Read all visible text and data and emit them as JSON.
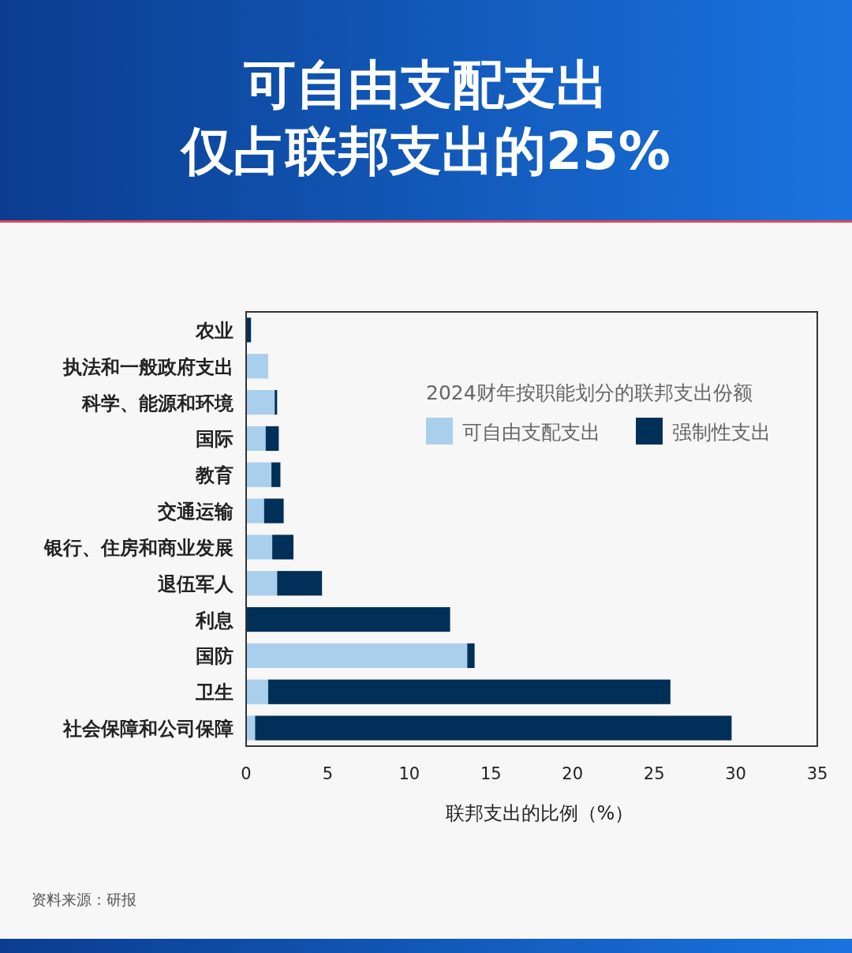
{
  "chart_data": {
    "type": "bar",
    "orientation": "horizontal",
    "stacked": true,
    "title": "可自由支配支出",
    "subtitle": "仅占联邦支出的25%",
    "categories": [
      "农业",
      "执法和一般政府支出",
      "科学、能源和环境",
      "国际",
      "教育",
      "交通运输",
      "银行、住房和商业发展",
      "退伍军人",
      "利息",
      "国防",
      "卫生",
      "社会保障和公司保障"
    ],
    "series": [
      {
        "name": "可自由支配支出",
        "color": "#a9cfec",
        "values": [
          0,
          1.35,
          1.75,
          1.2,
          1.55,
          1.1,
          1.6,
          1.9,
          0,
          13.55,
          1.35,
          0.55
        ]
      },
      {
        "name": "强制性支出",
        "color": "#003057",
        "values": [
          0.3,
          0,
          0.15,
          0.8,
          0.55,
          1.2,
          1.3,
          2.75,
          12.5,
          0.45,
          24.65,
          29.2
        ]
      }
    ],
    "xlim": [
      0,
      35
    ],
    "xticks": [
      0,
      5,
      10,
      15,
      20,
      25,
      30,
      35
    ],
    "xlabel": "联邦支出的比例（%）",
    "legend_title": "2024财年按职能划分的联邦支出份额",
    "legend": "top right",
    "grid": false,
    "annotations": [
      "资料来源：研报"
    ]
  }
}
